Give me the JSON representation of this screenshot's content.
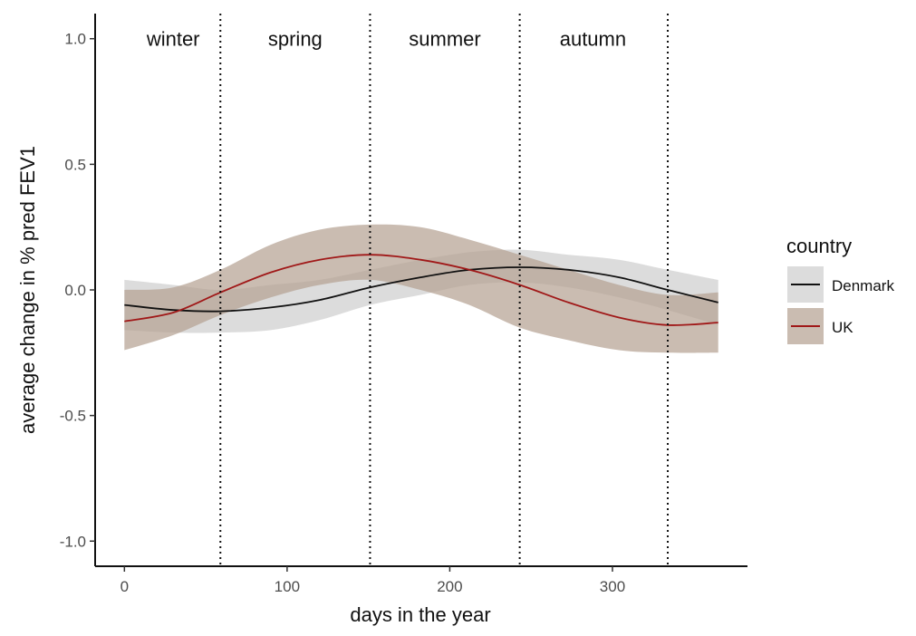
{
  "chart_data": {
    "type": "line",
    "xlabel": "days in the year",
    "ylabel": "average change in % pred FEV1",
    "xlim": [
      -18,
      383
    ],
    "ylim": [
      -1.1,
      1.1
    ],
    "xticks": [
      0,
      100,
      200,
      300
    ],
    "xtick_labels": [
      "0",
      "100",
      "200",
      "300"
    ],
    "yticks": [
      -1.0,
      -0.5,
      0.0,
      0.5,
      1.0
    ],
    "ytick_labels": [
      "-1.0",
      "-0.5",
      "0.0",
      "0.5",
      "1.0"
    ],
    "grid": false,
    "legend": {
      "title": "country",
      "placement": "right",
      "entries": [
        "Denmark",
        "UK"
      ]
    },
    "season_boundaries": [
      59,
      151,
      243,
      334
    ],
    "season_labels": [
      {
        "label": "winter",
        "x": 30
      },
      {
        "label": "spring",
        "x": 105
      },
      {
        "label": "summer",
        "x": 197
      },
      {
        "label": "autumn",
        "x": 288
      }
    ],
    "series": [
      {
        "name": "Denmark",
        "line_color": "#111111",
        "band_color": "#cfcfcf",
        "x": [
          0,
          30,
          59,
          90,
          120,
          151,
          182,
          212,
          243,
          273,
          304,
          334,
          365
        ],
        "y": [
          -0.06,
          -0.08,
          -0.085,
          -0.07,
          -0.04,
          0.01,
          0.05,
          0.08,
          0.09,
          0.08,
          0.05,
          0.0,
          -0.05
        ],
        "lower": [
          -0.16,
          -0.17,
          -0.17,
          -0.16,
          -0.12,
          -0.06,
          -0.02,
          0.02,
          0.03,
          0.01,
          -0.03,
          -0.08,
          -0.14
        ],
        "upper": [
          0.04,
          0.02,
          0.0,
          0.02,
          0.04,
          0.08,
          0.12,
          0.15,
          0.16,
          0.14,
          0.12,
          0.08,
          0.04
        ]
      },
      {
        "name": "UK",
        "line_color": "#a01818",
        "band_color": "#b5a293",
        "x": [
          0,
          30,
          59,
          90,
          120,
          151,
          182,
          212,
          243,
          273,
          304,
          334,
          365
        ],
        "y": [
          -0.125,
          -0.09,
          -0.01,
          0.07,
          0.12,
          0.14,
          0.12,
          0.08,
          0.02,
          -0.05,
          -0.11,
          -0.14,
          -0.13
        ],
        "lower": [
          -0.24,
          -0.18,
          -0.1,
          -0.03,
          0.02,
          0.04,
          0.0,
          -0.06,
          -0.15,
          -0.2,
          -0.24,
          -0.25,
          -0.25
        ],
        "upper": [
          0.0,
          0.01,
          0.08,
          0.18,
          0.24,
          0.26,
          0.25,
          0.2,
          0.14,
          0.08,
          0.02,
          -0.02,
          -0.01
        ]
      }
    ]
  }
}
